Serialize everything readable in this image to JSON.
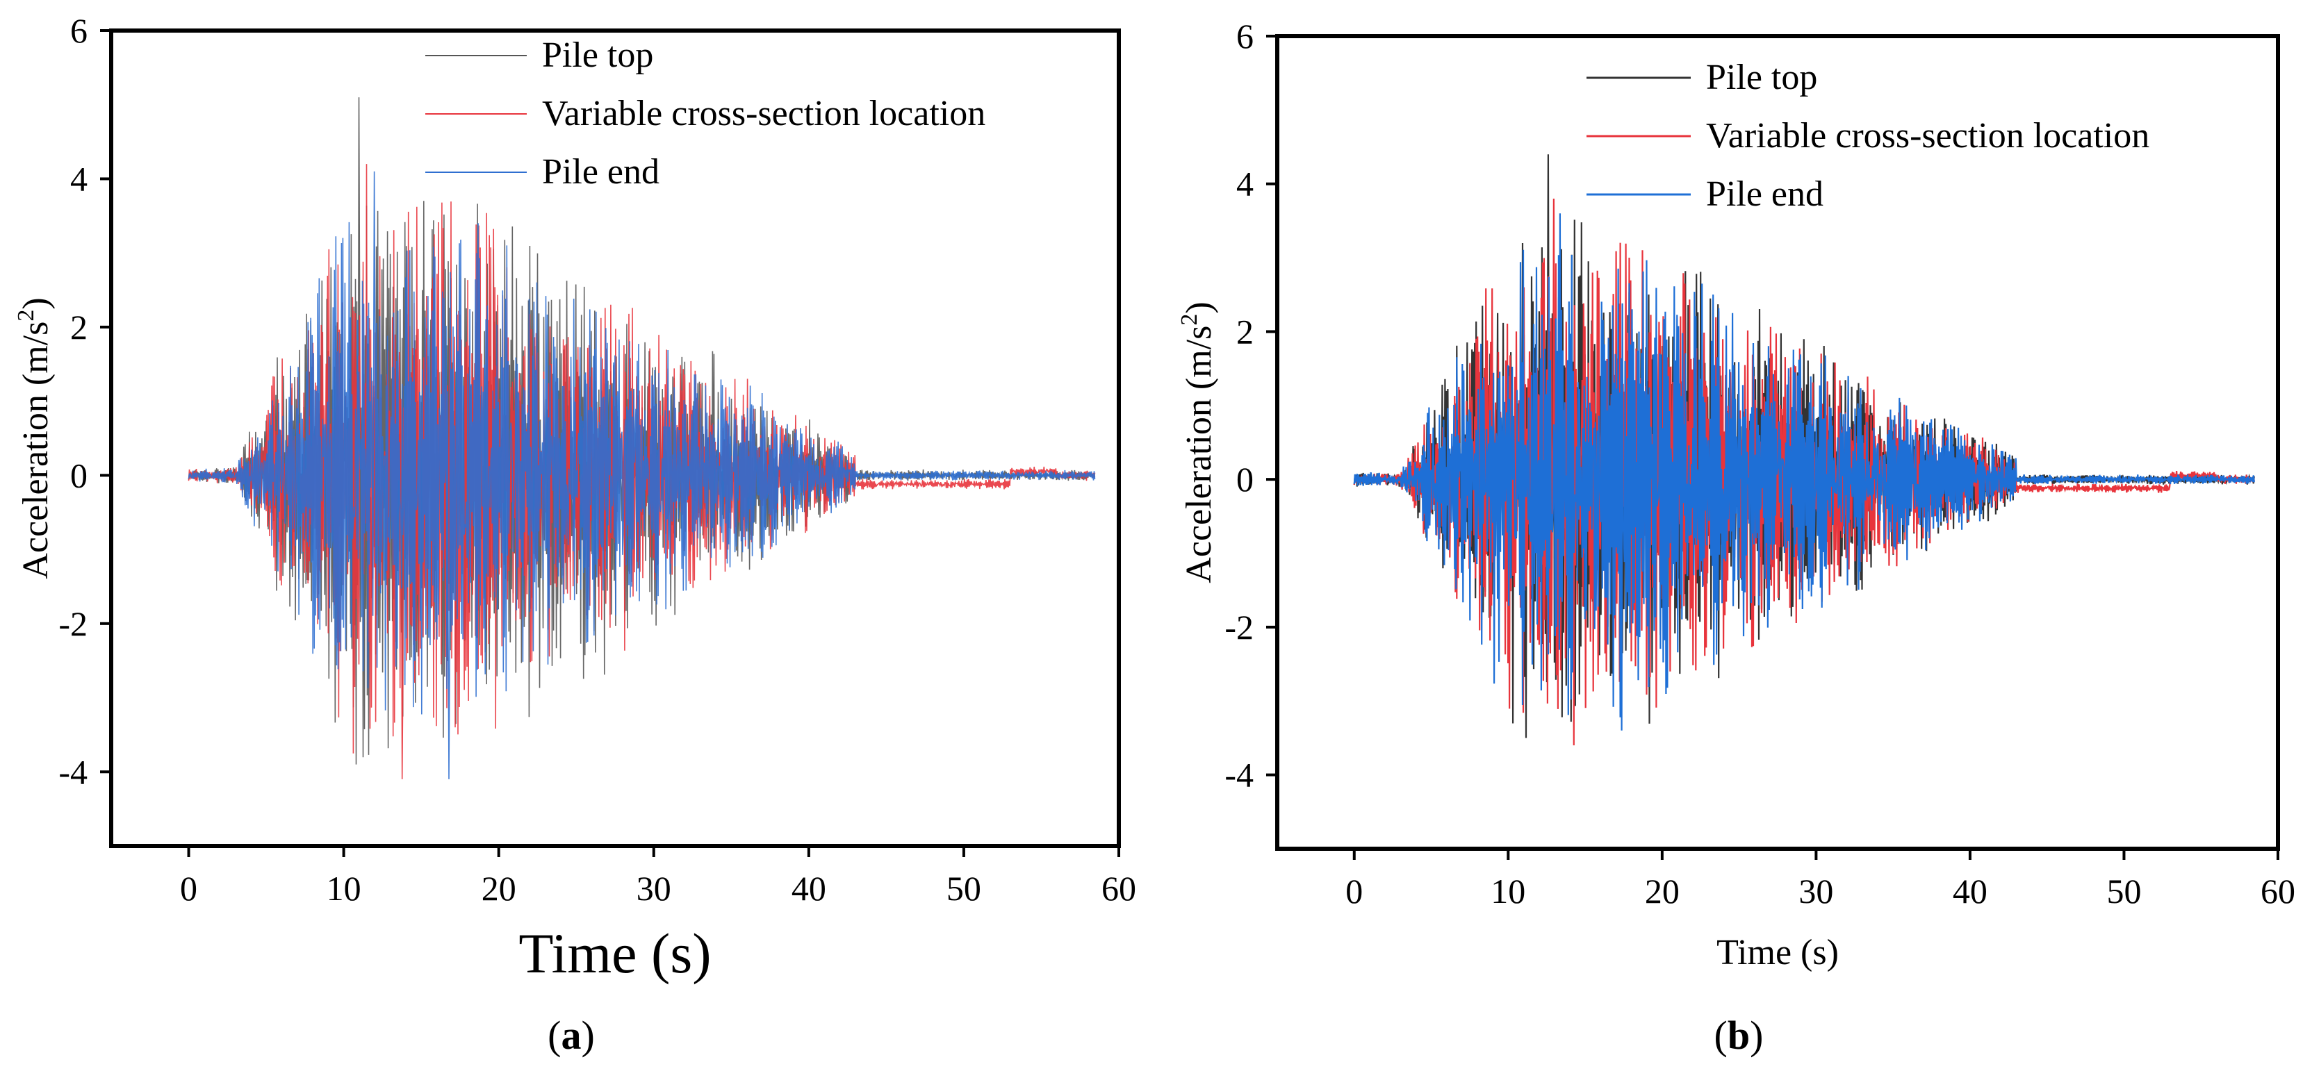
{
  "chart_data": [
    {
      "type": "line",
      "panel_label": "(a)",
      "panel_letter": "a",
      "xlabel": "Time (s)",
      "ylabel_base": "Acceleration (m/s",
      "ylabel_sup": "2",
      "ylabel_close": ")",
      "xlim": [
        -5,
        60
      ],
      "ylim": [
        -5,
        6
      ],
      "xticks": [
        "0",
        "10",
        "20",
        "30",
        "40",
        "50",
        "60"
      ],
      "yticks": [
        "-4",
        "-2",
        "0",
        "2",
        "4",
        "6"
      ],
      "legend_position": "top-right",
      "series": [
        {
          "name": "Pile top",
          "color": "#555555",
          "amp_scale": 1.0,
          "seed": 11,
          "peak": 5.1,
          "trough": -3.9
        },
        {
          "name": "Variable cross-section location",
          "color": "#e8343c",
          "amp_scale": 0.95,
          "seed": 23,
          "peak": 4.2,
          "trough": -4.1
        },
        {
          "name": "Pile end",
          "color": "#2f6fd0",
          "amp_scale": 0.9,
          "seed": 37,
          "peak": 4.1,
          "trough": -4.1
        }
      ],
      "envelope": {
        "start": 3,
        "rise_end": 10,
        "decay_end": 43,
        "tail_end": 58.5,
        "peak_amplitude": 3.6
      }
    },
    {
      "type": "line",
      "panel_label": "(b)",
      "panel_letter": "b",
      "xlabel": "Time (s)",
      "ylabel_base": "Acceleration (m/s",
      "ylabel_sup": "2",
      "ylabel_close": ")",
      "xlim": [
        -5,
        60
      ],
      "ylim": [
        -5,
        6
      ],
      "xticks": [
        "0",
        "10",
        "20",
        "30",
        "40",
        "50",
        "60"
      ],
      "yticks": [
        "-4",
        "-2",
        "0",
        "2",
        "4",
        "6"
      ],
      "legend_position": "top-right",
      "series": [
        {
          "name": "Pile top",
          "color": "#333333",
          "amp_scale": 1.0,
          "seed": 51,
          "peak": 4.4,
          "trough": -3.5
        },
        {
          "name": "Variable cross-section location",
          "color": "#e8343c",
          "amp_scale": 0.95,
          "seed": 63,
          "peak": 3.8,
          "trough": -3.6
        },
        {
          "name": "Pile end",
          "color": "#1e6fd6",
          "amp_scale": 0.95,
          "seed": 77,
          "peak": 3.6,
          "trough": -3.4
        }
      ],
      "envelope": {
        "start": 3,
        "rise_end": 10,
        "decay_end": 43,
        "tail_end": 58.5,
        "peak_amplitude": 3.2
      }
    }
  ]
}
